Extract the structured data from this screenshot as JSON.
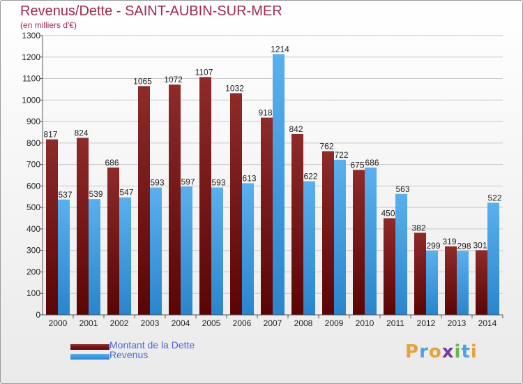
{
  "title": "Revenus/Dette - SAINT-AUBIN-SUR-MER",
  "unit_note": "(en milliers d'€)",
  "legend": [
    {
      "label": "Montant de la Dette",
      "color": "#7a1414"
    },
    {
      "label": "Revenus",
      "color": "#4aa3e6"
    }
  ],
  "logo": {
    "text": "Proxiti",
    "letter_colors": [
      "#e8a23a",
      "#4aa3e6",
      "#e8a23a",
      "#7a3aa0",
      "#6ab84a",
      "#4aa3e6",
      "#e8a23a"
    ]
  },
  "chart_data": {
    "type": "bar",
    "categories": [
      "2000",
      "2001",
      "2002",
      "2003",
      "2004",
      "2005",
      "2006",
      "2007",
      "2008",
      "2009",
      "2010",
      "2011",
      "2012",
      "2013",
      "2014"
    ],
    "series": [
      {
        "name": "Montant de la Dette",
        "color": "#7a1414",
        "values": [
          817,
          824,
          686,
          1065,
          1072,
          1107,
          1032,
          918,
          842,
          762,
          675,
          450,
          382,
          319,
          301
        ]
      },
      {
        "name": "Revenus",
        "color": "#4aa3e6",
        "values": [
          537,
          539,
          547,
          593,
          597,
          593,
          613,
          1214,
          622,
          722,
          686,
          563,
          299,
          298,
          522
        ]
      }
    ],
    "ylim": [
      0,
      1300
    ],
    "yticks": [
      0,
      100,
      200,
      300,
      400,
      500,
      600,
      700,
      800,
      900,
      1000,
      1100,
      1200,
      1300
    ],
    "grid": true
  }
}
